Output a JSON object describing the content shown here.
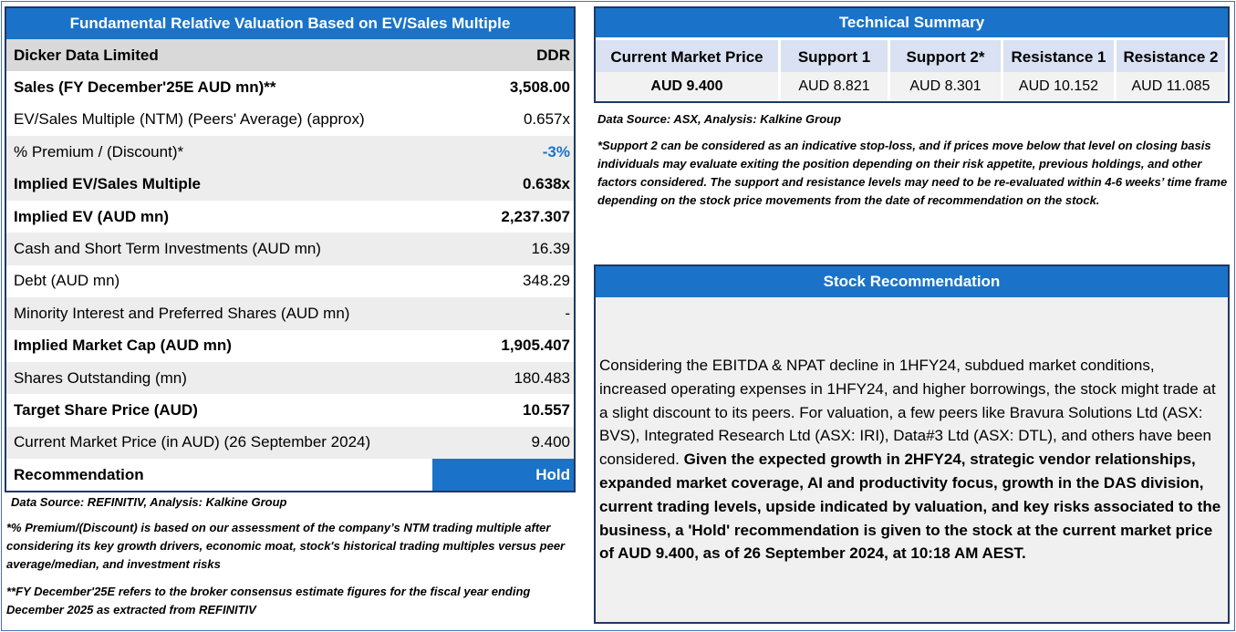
{
  "valuation": {
    "title": "Fundamental Relative Valuation Based on EV/Sales Multiple",
    "company": "Dicker Data Limited",
    "ticker": "DDR",
    "rows": [
      {
        "label": "Sales (FY December'25E AUD mn)**",
        "value": "3,508.00",
        "style": "bold white"
      },
      {
        "label": "EV/Sales Multiple (NTM)  (Peers' Average) (approx)",
        "value": "0.657x",
        "style": "white"
      },
      {
        "label": "% Premium / (Discount)*",
        "value": "-3%",
        "style": "grey",
        "value_style": "blue"
      },
      {
        "label": "Implied EV/Sales Multiple",
        "value": "0.638x",
        "style": "bold grey"
      },
      {
        "label": "Implied EV (AUD mn)",
        "value": "2,237.307",
        "style": "bold white"
      },
      {
        "label": "Cash and Short Term Investments (AUD mn)",
        "value": "16.39",
        "style": "grey"
      },
      {
        "label": "Debt (AUD mn)",
        "value": "348.29",
        "style": "white"
      },
      {
        "label": "Minority Interest and Preferred Shares (AUD mn)",
        "value": "-",
        "style": "grey"
      },
      {
        "label": "Implied Market Cap (AUD mn)",
        "value": "1,905.407",
        "style": "bold white"
      },
      {
        "label": "Shares Outstanding (mn)",
        "value": "180.483",
        "style": "grey"
      },
      {
        "label": "Target Share Price (AUD)",
        "value": "10.557",
        "style": "bold white"
      },
      {
        "label": "Current Market Price (in AUD) (26 September 2024)",
        "value": "9.400",
        "style": "grey"
      }
    ],
    "recommendation_label": "Recommendation",
    "recommendation_value": "Hold"
  },
  "left_notes": {
    "source": "Data Source: REFINITIV, Analysis: Kalkine Group",
    "premium_note": "*% Premium/(Discount) is based on our assessment of the company’s NTM trading multiple after considering its key growth drivers, economic moat, stock's historical trading multiples versus peer average/median, and investment risks",
    "fy_note": "**FY December'25E refers to the broker consensus estimate figures for the fiscal year ending December 2025  as extracted from REFINITIV"
  },
  "technical": {
    "title": "Technical Summary",
    "columns": [
      {
        "header": "Current Market Price",
        "value": "AUD 9.400"
      },
      {
        "header": "Support 1",
        "value": "AUD 8.821"
      },
      {
        "header": "Support 2*",
        "value": "AUD 8.301"
      },
      {
        "header": "Resistance 1",
        "value": "AUD 10.152"
      },
      {
        "header": "Resistance 2",
        "value": "AUD 11.085"
      }
    ],
    "source": "Data Source: ASX, Analysis: Kalkine Group",
    "note": "*Support 2 can be considered as an indicative stop-loss, and if prices move below that level on closing basis individuals may evaluate exiting the position depending on their risk appetite, previous holdings, and other factors considered. The support and resistance levels may need to be re-evaluated within 4-6 weeks’ time frame depending on the stock price movements from the date of recommendation on the stock."
  },
  "stock_recommendation": {
    "title": "Stock Recommendation",
    "text_regular": "Considering the EBITDA & NPAT decline in 1HFY24, subdued market conditions, increased operating expenses in 1HFY24, and higher borrowings, the stock might trade at a slight discount to its peers. For valuation, a few peers like Bravura Solutions Ltd (ASX: BVS), Integrated Research Ltd (ASX: IRI), Data#3 Ltd (ASX: DTL), and others have been considered. ",
    "text_bold": "Given the expected growth in 2HFY24, strategic vendor relationships, expanded market coverage, AI and productivity focus, growth in the DAS division, current trading levels, upside indicated by valuation, and key risks associated to the business, a 'Hold' recommendation is given to the stock at the current market price of AUD 9.400, as of 26 September 2024, at 10:18 AM AEST."
  }
}
